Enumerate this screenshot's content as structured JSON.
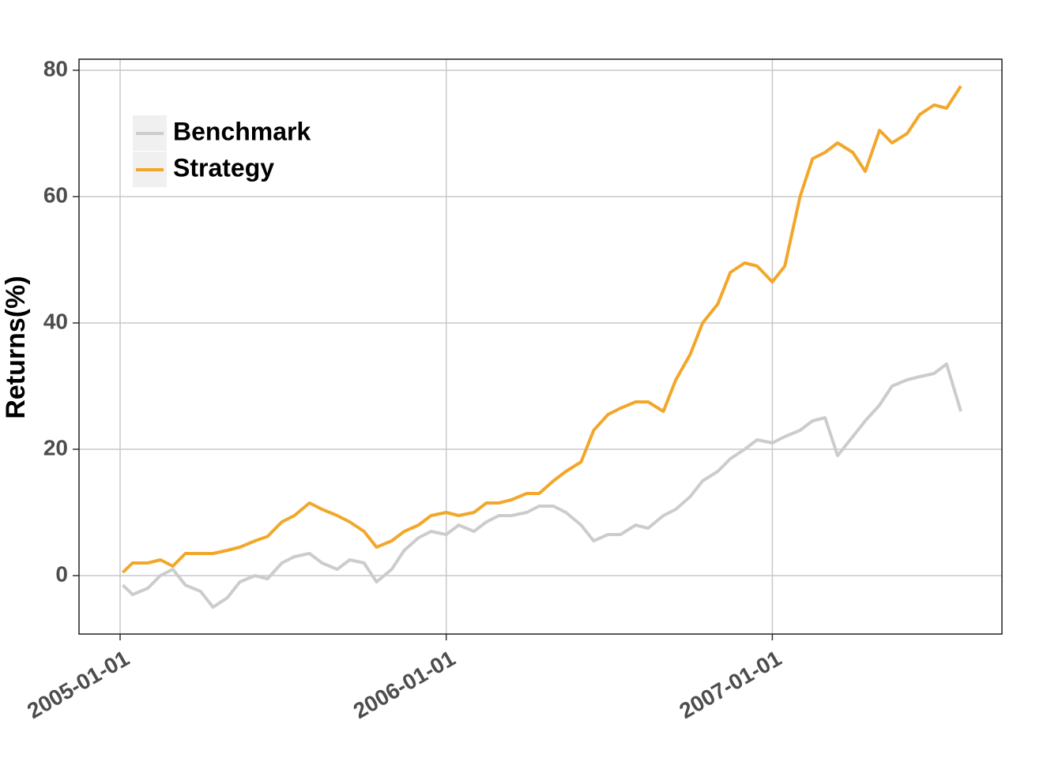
{
  "chart_data": {
    "type": "line",
    "ylabel": "Returns(%)",
    "x": [
      "2005-01-04",
      "2005-01-15",
      "2005-02-01",
      "2005-02-15",
      "2005-03-01",
      "2005-03-15",
      "2005-04-01",
      "2005-04-15",
      "2005-05-01",
      "2005-05-15",
      "2005-06-01",
      "2005-06-15",
      "2005-07-01",
      "2005-07-15",
      "2005-08-01",
      "2005-08-15",
      "2005-09-01",
      "2005-09-15",
      "2005-10-01",
      "2005-10-15",
      "2005-11-01",
      "2005-11-15",
      "2005-12-01",
      "2005-12-15",
      "2006-01-01",
      "2006-01-15",
      "2006-02-01",
      "2006-02-15",
      "2006-03-01",
      "2006-03-15",
      "2006-04-01",
      "2006-04-15",
      "2006-05-01",
      "2006-05-15",
      "2006-06-01",
      "2006-06-15",
      "2006-07-01",
      "2006-07-15",
      "2006-08-01",
      "2006-08-15",
      "2006-09-01",
      "2006-09-15",
      "2006-10-01",
      "2006-10-15",
      "2006-11-01",
      "2006-11-15",
      "2006-12-01",
      "2006-12-15",
      "2007-01-01",
      "2007-01-15",
      "2007-02-01",
      "2007-02-15",
      "2007-03-01",
      "2007-03-15",
      "2007-04-01",
      "2007-04-15",
      "2007-05-01",
      "2007-05-15",
      "2007-06-01",
      "2007-06-15",
      "2007-07-01",
      "2007-07-15",
      "2007-07-31"
    ],
    "series": [
      {
        "name": "Benchmark",
        "color": "#cccccc",
        "values": [
          -1.5,
          -3,
          -2,
          0,
          1,
          -1.5,
          -2.5,
          -5,
          -3.5,
          -1,
          0,
          -0.5,
          2,
          3,
          3.5,
          2,
          1,
          2.5,
          2,
          -1,
          1,
          4,
          6,
          7,
          6.5,
          8,
          7,
          8.5,
          9.5,
          9.5,
          10,
          11,
          11,
          10,
          8,
          5.5,
          6.5,
          6.5,
          8,
          7.5,
          9.5,
          10.5,
          12.5,
          15,
          16.5,
          18.5,
          20,
          21.5,
          21,
          22,
          23,
          24.5,
          25,
          19,
          22,
          24.5,
          27,
          30,
          31,
          31.5,
          32,
          33.5,
          26
        ]
      },
      {
        "name": "Strategy",
        "color": "#f2a72a",
        "values": [
          0.5,
          2,
          2,
          2.5,
          1.5,
          3.5,
          3.5,
          3.5,
          4,
          4.5,
          5.5,
          6.2,
          8.5,
          9.5,
          11.5,
          10.5,
          9.5,
          8.5,
          7,
          4.5,
          5.5,
          7,
          8,
          9.5,
          10,
          9.5,
          10,
          11.5,
          11.5,
          12,
          13,
          13,
          15,
          16.5,
          18,
          23,
          25.5,
          26.5,
          27.5,
          27.5,
          26,
          31,
          35,
          40,
          43,
          48,
          49.5,
          49,
          46.5,
          49,
          60,
          66,
          67,
          68.5,
          67,
          64,
          70.5,
          68.5,
          70,
          73,
          74.5,
          74,
          77.5
        ]
      }
    ],
    "xlim": [
      "2004-11-16",
      "2007-09-15"
    ],
    "xticks": [
      "2005-01-01",
      "2006-01-01",
      "2007-01-01"
    ],
    "ylim": [
      -9.25,
      81.75
    ],
    "yticks": [
      0,
      20,
      40,
      60,
      80
    ],
    "grid": true,
    "legend_position": "upper left"
  }
}
